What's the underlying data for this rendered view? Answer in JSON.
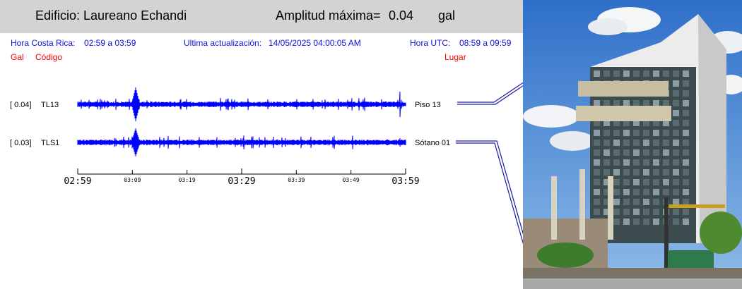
{
  "header": {
    "title": "Edificio: Laureano Echandi",
    "amplitude_label": "Amplitud máxima=",
    "amplitude_value": "0.04",
    "amplitude_unit": "gal"
  },
  "info": {
    "local_label": "Hora Costa Rica:",
    "local_range": "02:59 a 03:59",
    "update_label": "Ultima actualización:",
    "update_value": "14/05/2025 04:00:05 AM",
    "utc_label": "Hora UTC:",
    "utc_range": "08:59 a 09:59"
  },
  "columns": {
    "gal": "Gal",
    "code": "Código",
    "place": "Lugar"
  },
  "colors": {
    "trace": "#0000ff",
    "info_text": "#1010e0",
    "column_text": "#ff0000",
    "header_bg": "#d3d3d3"
  },
  "chart_data": {
    "type": "line",
    "xlabel": "",
    "ylabel": "",
    "x_range": [
      "02:59",
      "03:59"
    ],
    "ticks": [
      {
        "label": "02:59",
        "major": true
      },
      {
        "label": "03:09",
        "major": false
      },
      {
        "label": "03:19",
        "major": false
      },
      {
        "label": "03:29",
        "major": true
      },
      {
        "label": "03:39",
        "major": false
      },
      {
        "label": "03:49",
        "major": false
      },
      {
        "label": "03:59",
        "major": true
      }
    ],
    "series": [
      {
        "code": "TL13",
        "amplitude": "0.04",
        "amp_text": "[  0.04]",
        "place": "Piso 13"
      },
      {
        "code": "TLS1",
        "amplitude": "0.03",
        "amp_text": "[  0.03]",
        "place": "Sótano 01"
      }
    ]
  },
  "photo": {
    "subject": "building-photo"
  }
}
